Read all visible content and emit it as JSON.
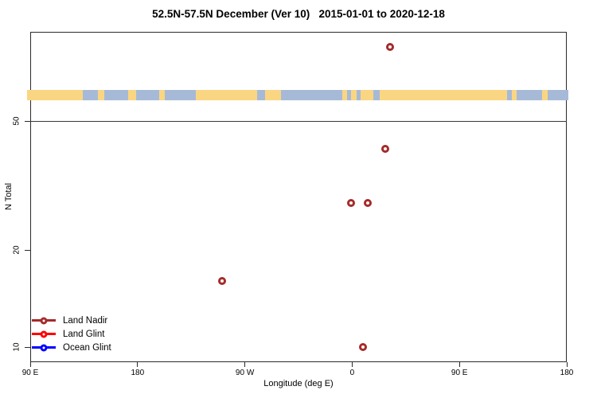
{
  "title": "52.5N-57.5N December (Ver 10)   2015-01-01 to 2020-12-18",
  "chart_data": {
    "type": "scatter",
    "title": "52.5N-57.5N December (Ver 10)   2015-01-01 to 2020-12-18",
    "xlabel": "Longitude (deg E)",
    "ylabel": "N Total",
    "grid": false,
    "x_axis": {
      "lim": [
        -270,
        180
      ],
      "ticks": [
        {
          "lon": -270,
          "label": "90 E"
        },
        {
          "lon": -180,
          "label": "180"
        },
        {
          "lon": -90,
          "label": "90 W"
        },
        {
          "lon": 0,
          "label": "0"
        },
        {
          "lon": 90,
          "label": "90 E"
        },
        {
          "lon": 180,
          "label": "180"
        }
      ]
    },
    "y_axis": {
      "scale": "log",
      "lim": [
        9,
        94.5
      ],
      "ticks": [
        {
          "value": 10,
          "label": "10"
        },
        {
          "value": 20,
          "label": "20"
        },
        {
          "value": 50,
          "label": "50"
        }
      ]
    },
    "reference_line": {
      "n": 50,
      "color": "#3a3a3a"
    },
    "legend": {
      "position": "bottom-left",
      "items": [
        {
          "label": "Land Nadir",
          "color": "#a52a2a"
        },
        {
          "label": "Land Glint",
          "color": "#ff0000"
        },
        {
          "label": "Ocean Glint",
          "color": "#0000ff"
        }
      ]
    },
    "series": [
      {
        "name": "Land Nadir",
        "color": "#a52a2a",
        "marker": "open-circle",
        "points": [
          {
            "lon": 32,
            "n": 85
          },
          {
            "lon": 28,
            "n": 41
          },
          {
            "lon": -1,
            "n": 28
          },
          {
            "lon": 13,
            "n": 28
          },
          {
            "lon": -109,
            "n": 16
          },
          {
            "lon": 9,
            "n": 10
          }
        ]
      },
      {
        "name": "Land Glint",
        "color": "#ff0000",
        "marker": "open-circle",
        "points": []
      },
      {
        "name": "Ocean Glint",
        "color": "#0000ff",
        "marker": "open-circle",
        "points": []
      }
    ],
    "map_strip": {
      "description": "land-ocean map band for latitude zone 52.5N-57.5N",
      "n_range": [
        58,
        62.6
      ],
      "land_color": "#fad682",
      "ocean_color": "#a6bad8",
      "segments": [
        [
          -273,
          -226,
          "land"
        ],
        [
          -226,
          -213,
          "ocean"
        ],
        [
          -213,
          -208,
          "land"
        ],
        [
          -208,
          -188,
          "ocean"
        ],
        [
          -188,
          -181,
          "land"
        ],
        [
          -181,
          -162,
          "ocean"
        ],
        [
          -162,
          -157,
          "land"
        ],
        [
          -157,
          -131,
          "ocean"
        ],
        [
          -131,
          -80,
          "land"
        ],
        [
          -80,
          -73,
          "ocean"
        ],
        [
          -73,
          -60,
          "land"
        ],
        [
          -60,
          -8,
          "ocean"
        ],
        [
          -8,
          -4,
          "land"
        ],
        [
          -4,
          -1,
          "ocean"
        ],
        [
          -1,
          4,
          "land"
        ],
        [
          4,
          7,
          "ocean"
        ],
        [
          7,
          18,
          "land"
        ],
        [
          18,
          23,
          "ocean"
        ],
        [
          23,
          130,
          "land"
        ],
        [
          130,
          134,
          "ocean"
        ],
        [
          134,
          138,
          "land"
        ],
        [
          138,
          159,
          "ocean"
        ],
        [
          159,
          164,
          "land"
        ],
        [
          164,
          181.5,
          "ocean"
        ]
      ]
    }
  }
}
